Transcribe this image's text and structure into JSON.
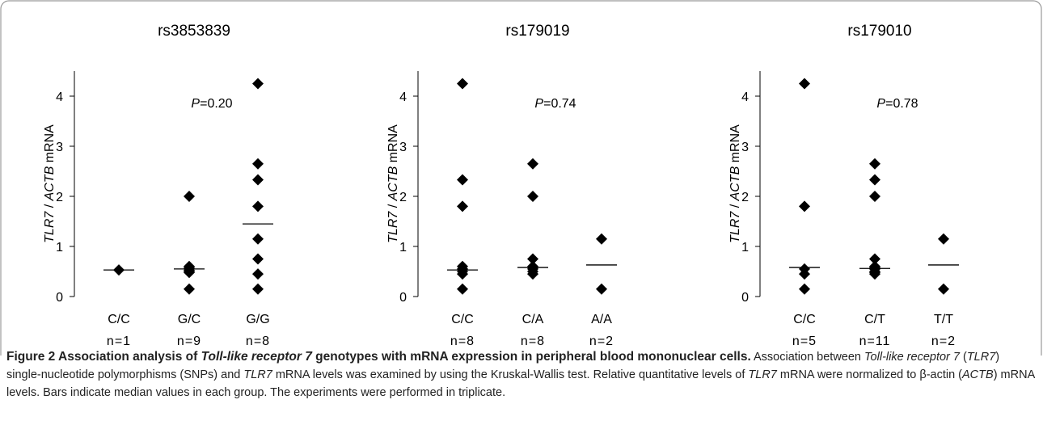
{
  "chart_data": [
    {
      "type": "strip",
      "title": "rs3853839",
      "ylabel": [
        "TLR7",
        " / ",
        "ACTB",
        " mRNA"
      ],
      "annotation": [
        "P",
        "=0.20"
      ],
      "categories": [
        "C/C",
        "G/C",
        "G/G"
      ],
      "n_labels": [
        "n=1",
        "n=9",
        "n=8"
      ],
      "points": [
        [
          0.53
        ],
        [
          2.0,
          0.6,
          0.58,
          0.55,
          0.55,
          0.52,
          0.5,
          0.48,
          0.15
        ],
        [
          4.25,
          2.65,
          2.33,
          1.8,
          1.15,
          0.75,
          0.45,
          0.15
        ]
      ],
      "medians": [
        0.53,
        0.55,
        1.45
      ],
      "color": "#000000",
      "ylim": [
        0,
        4.5
      ],
      "yticks": [
        0,
        1,
        2,
        3,
        4
      ]
    },
    {
      "type": "strip",
      "title": "rs179019",
      "ylabel": [
        "TLR7",
        " / ",
        "ACTB",
        " mRNA"
      ],
      "annotation": [
        "P",
        "=0.74"
      ],
      "categories": [
        "C/C",
        "C/A",
        "A/A"
      ],
      "n_labels": [
        "n=8",
        "n=8",
        "n=2"
      ],
      "points": [
        [
          4.25,
          2.33,
          1.8,
          0.6,
          0.55,
          0.5,
          0.45,
          0.15
        ],
        [
          2.65,
          2.0,
          0.75,
          0.6,
          0.58,
          0.55,
          0.5,
          0.45
        ],
        [
          1.15,
          0.15
        ]
      ],
      "medians": [
        0.53,
        0.58,
        0.63
      ],
      "color": "#000000",
      "ylim": [
        0,
        4.5
      ],
      "yticks": [
        0,
        1,
        2,
        3,
        4
      ]
    },
    {
      "type": "strip",
      "title": "rs179010",
      "ylabel": [
        "TLR7",
        " / ",
        "ACTB",
        " mRNA"
      ],
      "annotation": [
        "P",
        "=0.78"
      ],
      "categories": [
        "C/C",
        "C/T",
        "T/T"
      ],
      "n_labels": [
        "n=5",
        "n=11",
        "n=2"
      ],
      "points": [
        [
          4.25,
          1.8,
          0.55,
          0.45,
          0.15
        ],
        [
          2.65,
          2.33,
          2.0,
          0.75,
          0.6,
          0.58,
          0.55,
          0.55,
          0.5,
          0.48,
          0.45
        ],
        [
          1.15,
          0.15
        ]
      ],
      "medians": [
        0.58,
        0.56,
        0.63
      ],
      "color": "#000000",
      "ylim": [
        0,
        4.5
      ],
      "yticks": [
        0,
        1,
        2,
        3,
        4
      ]
    }
  ],
  "caption": {
    "title": [
      "Figure 2 Association analysis of ",
      "Toll-like receptor 7",
      " genotypes with mRNA expression in peripheral blood mononuclear cells."
    ],
    "text": [
      "Association between ",
      "Toll-like receptor 7",
      " (",
      "TLR7",
      ") single-nucleotide polymorphisms (SNPs) and ",
      "TLR7",
      " mRNA levels was examined by using the Kruskal-Wallis test. Relative quantitative levels of ",
      "TLR7",
      " mRNA were normalized to β-actin (",
      "ACTB",
      ") mRNA levels. Bars indicate median values in each group. The experiments were performed in triplicate."
    ]
  }
}
